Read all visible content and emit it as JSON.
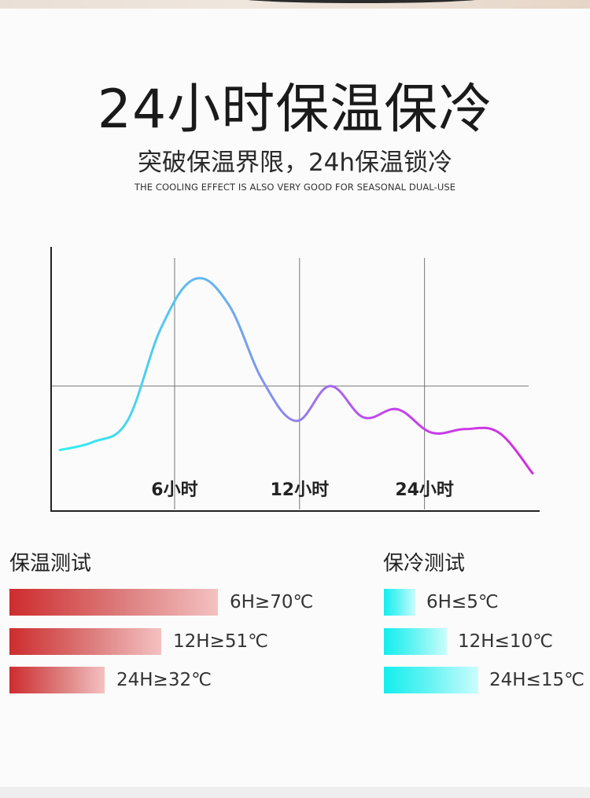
{
  "header": {
    "title": "24小时保温保冷",
    "subtitle": "突破保温界限，24h保温锁冷",
    "caption": "THE COOLING EFFECT IS ALSO VERY GOOD FOR SEASONAL DUAL-USE"
  },
  "chart_data": {
    "type": "line",
    "x_tick_labels": [
      "6小时",
      "12小时",
      "24小时"
    ],
    "x": [
      0,
      2,
      4,
      6,
      8,
      10,
      12,
      14,
      16,
      18,
      20,
      22,
      24,
      26,
      28
    ],
    "values": [
      -0.55,
      -0.48,
      -0.3,
      0.5,
      0.92,
      0.7,
      0.05,
      -0.3,
      0.0,
      -0.27,
      -0.2,
      -0.4,
      -0.37,
      -0.4,
      -0.75
    ],
    "gradient_colors": [
      "#2ff0f0",
      "#6aaef0",
      "#c146ee",
      "#d22ee0"
    ],
    "grid": true,
    "xlabel": "",
    "ylabel": ""
  },
  "heat_test": {
    "title": "保温测试",
    "color": "#cd2c2e",
    "items": [
      {
        "label": "6H≥70℃",
        "value_c": 70
      },
      {
        "label": "12H≥51℃",
        "value_c": 51
      },
      {
        "label": "24H≥32℃",
        "value_c": 32
      }
    ]
  },
  "cold_test": {
    "title": "保冷测试",
    "color": "#14eeee",
    "items": [
      {
        "label": "6H≤5℃",
        "value_c": 5
      },
      {
        "label": "12H≤10℃",
        "value_c": 10
      },
      {
        "label": "24H≤15℃",
        "value_c": 15
      }
    ]
  }
}
